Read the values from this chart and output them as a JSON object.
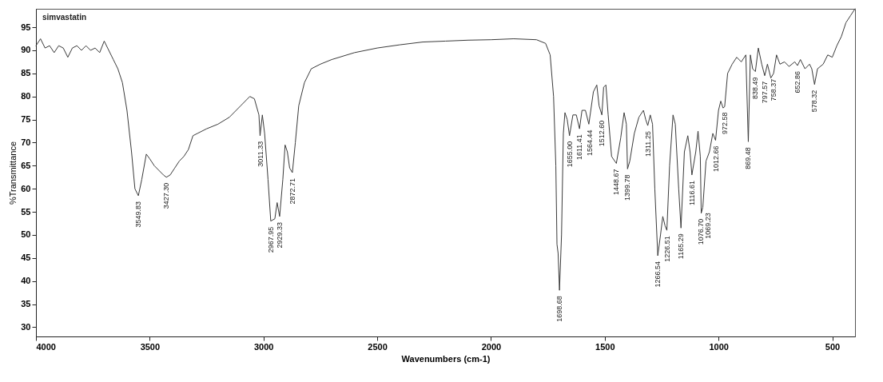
{
  "chart_data": {
    "type": "line",
    "xlabel": "Wavenumbers (cm-1)",
    "ylabel": "%Transmittance",
    "xlim": [
      4000,
      400
    ],
    "xticks": [
      4000,
      3500,
      3000,
      2500,
      2000,
      1500,
      1000,
      500
    ],
    "ylim": [
      28,
      99
    ],
    "yticks": [
      30,
      35,
      40,
      45,
      50,
      55,
      60,
      65,
      70,
      75,
      80,
      85,
      90,
      95
    ],
    "grid": false,
    "marker": "none",
    "line_style": "solid",
    "series": [
      {
        "color": "#3a3a3a",
        "x": [
          4000,
          3980,
          3960,
          3940,
          3920,
          3900,
          3880,
          3860,
          3840,
          3820,
          3800,
          3780,
          3760,
          3740,
          3720,
          3700,
          3680,
          3660,
          3640,
          3620,
          3600,
          3580,
          3565,
          3550,
          3535,
          3515,
          3500,
          3480,
          3460,
          3440,
          3427,
          3410,
          3390,
          3370,
          3350,
          3330,
          3310,
          3290,
          3250,
          3200,
          3150,
          3100,
          3060,
          3040,
          3020,
          3015,
          3005,
          2995,
          2980,
          2968,
          2950,
          2940,
          2929,
          2915,
          2905,
          2895,
          2885,
          2873,
          2860,
          2845,
          2820,
          2790,
          2750,
          2700,
          2600,
          2500,
          2400,
          2300,
          2200,
          2100,
          2000,
          1900,
          1800,
          1760,
          1740,
          1725,
          1715,
          1710,
          1705,
          1699,
          1690,
          1682,
          1675,
          1665,
          1655,
          1640,
          1625,
          1611,
          1600,
          1585,
          1570,
          1550,
          1535,
          1525,
          1512.6,
          1505,
          1495,
          1485,
          1470,
          1449,
          1430,
          1415,
          1405,
          1400,
          1390,
          1370,
          1350,
          1330,
          1320,
          1311,
          1300,
          1290,
          1280,
          1267,
          1255,
          1245,
          1235,
          1227,
          1215,
          1200,
          1190,
          1175,
          1165,
          1150,
          1135,
          1125,
          1117,
          1100,
          1090,
          1080,
          1076,
          1069,
          1055,
          1040,
          1025,
          1013,
          1000,
          990,
          980,
          973,
          960,
          940,
          920,
          900,
          880,
          869,
          860,
          850,
          838,
          825,
          810,
          797,
          785,
          770,
          758,
          745,
          730,
          710,
          690,
          665,
          653,
          640,
          620,
          600,
          590,
          578,
          565,
          540,
          520,
          500,
          480,
          460,
          440,
          420,
          400
        ],
        "values": [
          91,
          92.5,
          90.5,
          91,
          89.5,
          91,
          90.5,
          88.5,
          90.5,
          91,
          90,
          91,
          90,
          90.5,
          89.5,
          92,
          90,
          88,
          86,
          83,
          77,
          68,
          60,
          58.5,
          62,
          67.5,
          66.5,
          65,
          64,
          63,
          62.5,
          63,
          64.5,
          66,
          67,
          68.5,
          71.5,
          72,
          73,
          74,
          75.5,
          78,
          80,
          79.5,
          76,
          71.5,
          76,
          72,
          62,
          53,
          53.5,
          57,
          54,
          62,
          69.5,
          68,
          64.5,
          63.5,
          70,
          78,
          83,
          86,
          87,
          88,
          89.5,
          90.5,
          91.2,
          91.8,
          92,
          92.2,
          92.3,
          92.5,
          92.3,
          91.5,
          89,
          80,
          65,
          48,
          46,
          38,
          50,
          72,
          76.5,
          75,
          71.5,
          76,
          76,
          73,
          77,
          77,
          74,
          81,
          82.5,
          78,
          76,
          82,
          82.5,
          76,
          67,
          65.5,
          71,
          76.5,
          74,
          64.3,
          66,
          72,
          75.5,
          77,
          75,
          73.7,
          76,
          74,
          60,
          45.5,
          50,
          54,
          52,
          51,
          65,
          76,
          74,
          60,
          51.5,
          68,
          71.5,
          68,
          63,
          68,
          72.5,
          67,
          54.7,
          56,
          66,
          68,
          72,
          70.5,
          77,
          79,
          77.5,
          77.8,
          85,
          87,
          88.5,
          87.5,
          89,
          70.2,
          89,
          86,
          85.4,
          90.5,
          87,
          84.5,
          87,
          84,
          85,
          89,
          87,
          87.5,
          86.5,
          87.5,
          86.7,
          88,
          86,
          87,
          86,
          82.6,
          86,
          87,
          89,
          88.5,
          91,
          93,
          96,
          97.5,
          99
        ]
      }
    ],
    "annotations": [
      "simvastatin",
      {
        "text": "3549.83",
        "x": 3549.83,
        "y": 58.5
      },
      {
        "text": "3427.30",
        "x": 3427.3,
        "y": 62.5
      },
      {
        "text": "3011.33",
        "x": 3011.33,
        "y": 71.5
      },
      {
        "text": "2967.95",
        "x": 2967.95,
        "y": 53
      },
      {
        "text": "2929.33",
        "x": 2929.33,
        "y": 54
      },
      {
        "text": "2872.71",
        "x": 2872.71,
        "y": 63.5
      },
      {
        "text": "1698.68",
        "x": 1698.68,
        "y": 38
      },
      {
        "text": "1655.00",
        "x": 1655.0,
        "y": 71.5
      },
      {
        "text": "1611.41",
        "x": 1611.41,
        "y": 73
      },
      {
        "text": "1564.44",
        "x": 1564.44,
        "y": 74
      },
      {
        "text": "1512.60",
        "x": 1512.6,
        "y": 76
      },
      {
        "text": "1448.67",
        "x": 1448.67,
        "y": 65.5
      },
      {
        "text": "1399.78",
        "x": 1399.78,
        "y": 64.3
      },
      {
        "text": "1311.25",
        "x": 1311.25,
        "y": 73.7
      },
      {
        "text": "1266.54",
        "x": 1266.54,
        "y": 45.5
      },
      {
        "text": "1226.51",
        "x": 1226.51,
        "y": 51
      },
      {
        "text": "1165.29",
        "x": 1165.29,
        "y": 51.5
      },
      {
        "text": "1116.61",
        "x": 1116.61,
        "y": 63
      },
      {
        "text": "1076.70",
        "x": 1076.7,
        "y": 54.7
      },
      {
        "text": "1069.23",
        "x": 1069.23,
        "y": 56
      },
      {
        "text": "1012.66",
        "x": 1012.66,
        "y": 70.5
      },
      {
        "text": "972.58",
        "x": 972.58,
        "y": 77.8
      },
      {
        "text": "869.48",
        "x": 869.48,
        "y": 70.2
      },
      {
        "text": "838.49",
        "x": 838.49,
        "y": 85.4
      },
      {
        "text": "797.57",
        "x": 797.57,
        "y": 84.5
      },
      {
        "text": "758.37",
        "x": 758.37,
        "y": 85
      },
      {
        "text": "652.86",
        "x": 652.86,
        "y": 86.7
      },
      {
        "text": "578.32",
        "x": 578.32,
        "y": 82.6
      }
    ]
  }
}
